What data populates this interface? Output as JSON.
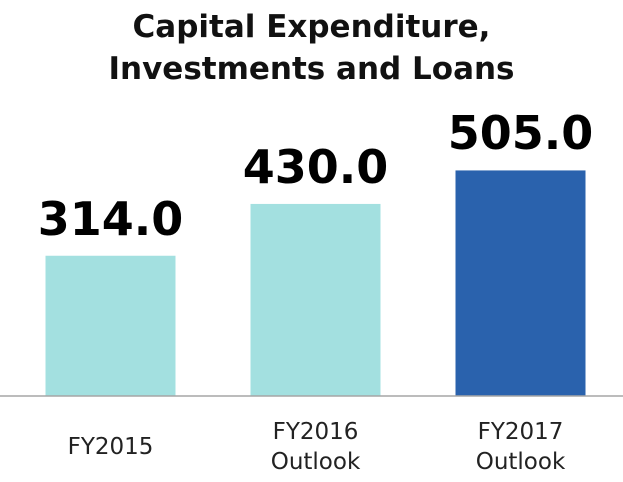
{
  "chart_data": {
    "type": "bar",
    "title": "Capital Expenditure, Investments and Loans",
    "categories": [
      "FY2015",
      "FY2016 Outlook",
      "FY2017 Outlook"
    ],
    "values": [
      314,
      430,
      505
    ],
    "value_labels": [
      "314.0",
      "430.0",
      "505.0"
    ],
    "colors": [
      "#a3e0e0",
      "#a3e0e0",
      "#2a62ad"
    ],
    "ylim": [
      0,
      600
    ]
  }
}
